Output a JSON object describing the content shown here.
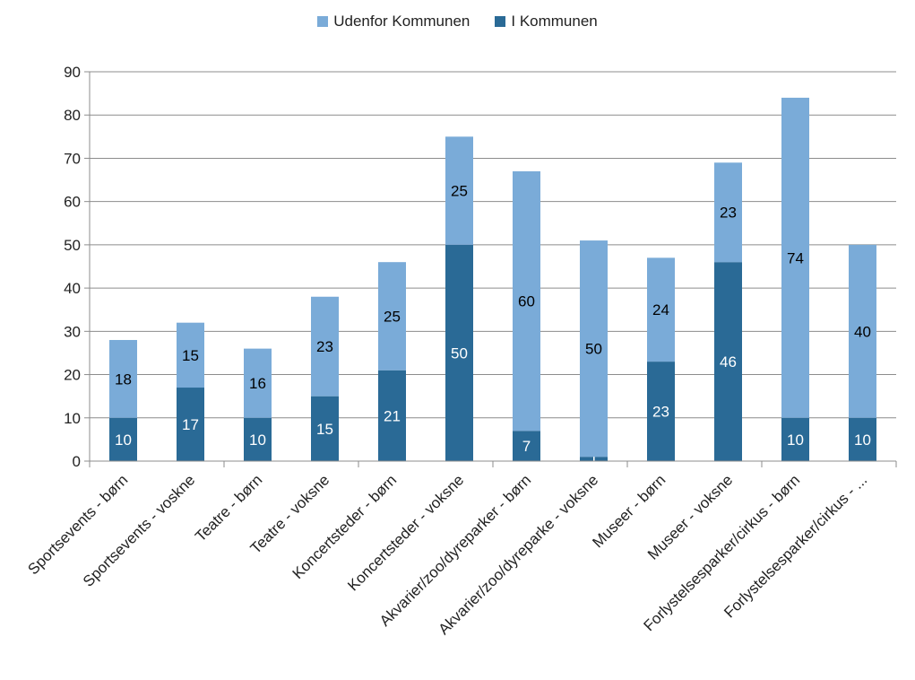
{
  "chart_data": {
    "type": "bar",
    "stacked": true,
    "categories": [
      "Sportsevents - børn",
      "Sportsevents - voskne",
      "Teatre - børn",
      "Teatre - voksne",
      "Koncertsteder - børn",
      "Koncertsteder - voksne",
      "Akvarier/zoo/dyreparker - børn",
      "Akvarier/zoo/dyreparke - voksne",
      "Museer - børn",
      "Museer - voksne",
      "Forlystelsesparker/cirkus - børn",
      "Forlystelsesparker/cirkus - ..."
    ],
    "series": [
      {
        "name": "I Kommunen",
        "color": "#2a6a96",
        "label_color": "#ffffff",
        "values": [
          10,
          17,
          10,
          15,
          21,
          50,
          7,
          1,
          23,
          46,
          10,
          10
        ]
      },
      {
        "name": "Udenfor Kommunen",
        "color": "#7aabd8",
        "label_color": "#000000",
        "values": [
          18,
          15,
          16,
          23,
          25,
          25,
          60,
          50,
          24,
          23,
          74,
          40
        ]
      }
    ],
    "legend_order": [
      "Udenfor Kommunen",
      "I Kommunen"
    ],
    "legend_position": "top",
    "ylim": [
      0,
      90
    ],
    "yticks": [
      0,
      10,
      20,
      30,
      40,
      50,
      60,
      70,
      80,
      90
    ],
    "grid": true,
    "title": "",
    "xlabel": "",
    "ylabel": ""
  }
}
